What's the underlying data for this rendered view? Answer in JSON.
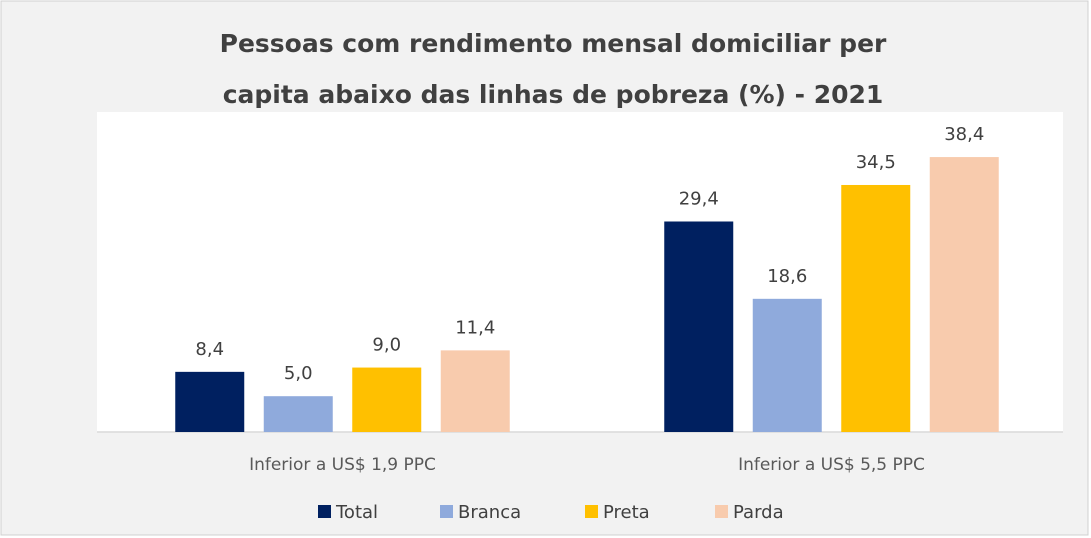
{
  "chart_data": {
    "type": "bar",
    "title": [
      "Pessoas com rendimento mensal domiciliar per",
      "capita abaixo das linhas de pobreza (%) - 2021"
    ],
    "categories": [
      "Inferior a US$ 1,9 PPC",
      "Inferior a US$ 5,5 PPC"
    ],
    "series": [
      {
        "name": "Total",
        "color": "#002060",
        "values": [
          8.4,
          29.4
        ],
        "value_labels": [
          "8,4",
          "29,4"
        ]
      },
      {
        "name": "Branca",
        "color": "#8faadc",
        "values": [
          5.0,
          18.6
        ],
        "value_labels": [
          "5,0",
          "18,6"
        ]
      },
      {
        "name": "Preta",
        "color": "#ffc000",
        "values": [
          9.0,
          34.5
        ],
        "value_labels": [
          "9,0",
          "34,5"
        ]
      },
      {
        "name": "Parda",
        "color": "#f8cbad",
        "values": [
          11.4,
          38.4
        ],
        "value_labels": [
          "11,4",
          "38,4"
        ]
      }
    ],
    "legend": "bottom"
  }
}
